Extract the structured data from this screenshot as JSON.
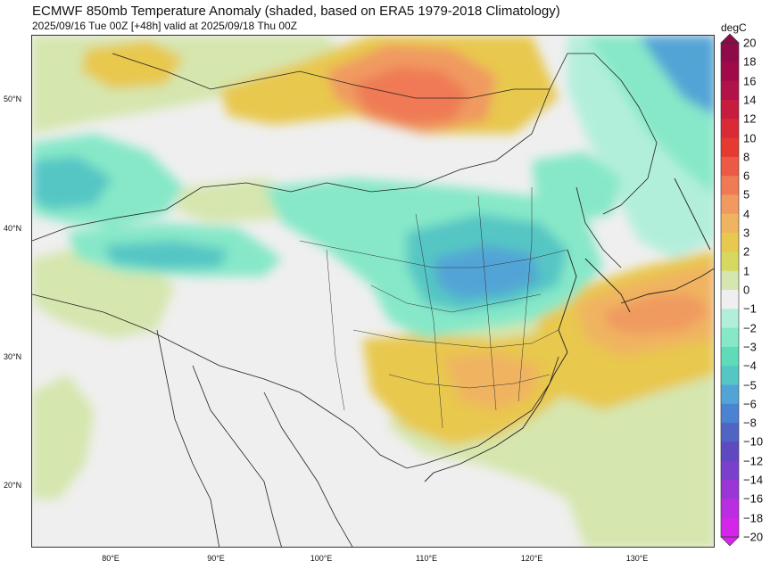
{
  "header": {
    "title": "ECMWF 850mb Temperature Anomaly (shaded, based on ERA5 1979-2018 Climatology)",
    "subtitle": "2025/09/16 Tue 00Z [+48h] valid at 2025/09/18 Thu 00Z"
  },
  "map": {
    "lat_ticks": [
      "50°N",
      "40°N",
      "30°N",
      "20°N"
    ],
    "lon_ticks": [
      "80°E",
      "90°E",
      "100°E",
      "110°E",
      "120°E",
      "130°E"
    ]
  },
  "colorbar": {
    "unit": "degC",
    "labels": [
      "20",
      "18",
      "16",
      "14",
      "12",
      "10",
      "8",
      "6",
      "5",
      "4",
      "3",
      "2",
      "1",
      "0",
      "−1",
      "−2",
      "−3",
      "−4",
      "−5",
      "−6",
      "−8",
      "−10",
      "−12",
      "−14",
      "−16",
      "−18",
      "−20"
    ],
    "colors": [
      "#8e0b4a",
      "#a00a4a",
      "#b2124a",
      "#c61c3e",
      "#d92a35",
      "#e43a32",
      "#ea5a46",
      "#ef7a55",
      "#f09a60",
      "#f0b460",
      "#e8c84e",
      "#d8d860",
      "#d5e6ae",
      "#efefef",
      "#b2efdb",
      "#86e8c8",
      "#5fdcb7",
      "#54c6c4",
      "#52a4d6",
      "#4c82d2",
      "#5064c4",
      "#6048c0",
      "#7a40cc",
      "#9a36d6",
      "#b82ee0",
      "#d426ea"
    ],
    "colors_order": "top-to-bottom"
  }
}
